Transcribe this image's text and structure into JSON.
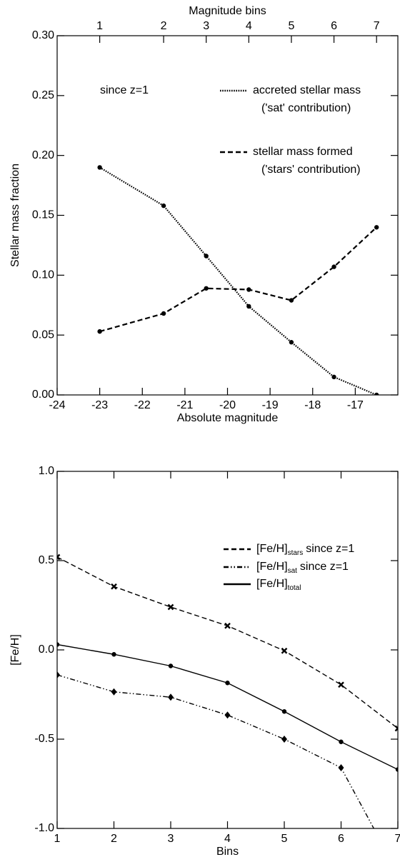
{
  "chart_data": [
    {
      "type": "line",
      "xlabel": "Absolute magnitude",
      "ylabel": "Stellar mass fraction",
      "x2label": "Magnitude bins",
      "annotation": "since z=1",
      "x": [
        -23,
        -21.5,
        -20.5,
        -19.5,
        -18.5,
        -17.5,
        -16.5
      ],
      "xlim": [
        -24,
        -16
      ],
      "xticks": [
        -24,
        -23,
        -22,
        -21,
        -20,
        -19,
        -18,
        -17
      ],
      "x2ticks": [
        {
          "value": -23,
          "label": "1"
        },
        {
          "value": -21.5,
          "label": "2"
        },
        {
          "value": -20.5,
          "label": "3"
        },
        {
          "value": -19.5,
          "label": "4"
        },
        {
          "value": -18.5,
          "label": "5"
        },
        {
          "value": -17.5,
          "label": "6"
        },
        {
          "value": -16.5,
          "label": "7"
        }
      ],
      "ylim": [
        0,
        0.3
      ],
      "yticks": [
        {
          "value": 0,
          "label": "0.00"
        },
        {
          "value": 0.05,
          "label": "0.05"
        },
        {
          "value": 0.1,
          "label": "0.10"
        },
        {
          "value": 0.15,
          "label": "0.15"
        },
        {
          "value": 0.2,
          "label": "0.20"
        },
        {
          "value": 0.25,
          "label": "0.25"
        },
        {
          "value": 0.3,
          "label": "0.30"
        }
      ],
      "series": [
        {
          "name": "accreted stellar mass",
          "name_line2": "('sat' contribution)",
          "color": "#000000",
          "linestyle": "dotted",
          "marker": "circle",
          "values": [
            0.19,
            0.158,
            0.116,
            0.074,
            0.044,
            0.015,
            0.0
          ]
        },
        {
          "name": "stellar mass formed",
          "name_line2": "('stars' contribution)",
          "color": "#000000",
          "linestyle": "dashed",
          "marker": "circle",
          "values": [
            0.053,
            0.068,
            0.089,
            0.088,
            0.079,
            0.107,
            0.14
          ]
        }
      ]
    },
    {
      "type": "line",
      "xlabel": "Bins",
      "ylabel": "[Fe/H]",
      "x": [
        1,
        2,
        3,
        4,
        5,
        6,
        7
      ],
      "xlim": [
        1,
        7
      ],
      "xticks": [
        1,
        2,
        3,
        4,
        5,
        6,
        7
      ],
      "ylim": [
        -1,
        1
      ],
      "yticks": [
        {
          "value": -1,
          "label": "-1.0"
        },
        {
          "value": -0.5,
          "label": "-0.5"
        },
        {
          "value": 0,
          "label": "0.0"
        },
        {
          "value": 0.5,
          "label": "0.5"
        },
        {
          "value": 1,
          "label": "1.0"
        }
      ],
      "series": [
        {
          "name": "[Fe/H]",
          "subscript": "stars",
          "suffix": "since z=1",
          "color": "#000000",
          "linestyle": "dashed",
          "marker": "cross",
          "values": [
            0.52,
            0.355,
            0.24,
            0.135,
            -0.005,
            -0.195,
            -0.44
          ]
        },
        {
          "name": "[Fe/H]",
          "subscript": "sat",
          "suffix": "since z=1",
          "color": "#000000",
          "linestyle": "dashdotdot",
          "marker": "diamond",
          "values": [
            -0.14,
            -0.235,
            -0.265,
            -0.365,
            -0.5,
            -0.66,
            -1.25
          ]
        },
        {
          "name": "[Fe/H]",
          "subscript": "total",
          "color": "#000000",
          "linestyle": "solid",
          "marker": "circle",
          "values": [
            0.03,
            -0.025,
            -0.09,
            -0.185,
            -0.345,
            -0.515,
            -0.67
          ]
        }
      ]
    }
  ]
}
